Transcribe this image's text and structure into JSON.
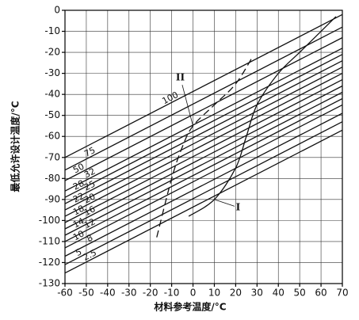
{
  "chart_data": {
    "type": "line",
    "xlabel": "材料参考温度/°C",
    "ylabel": "最低允许设计温度/°C",
    "xlim": [
      -60,
      70
    ],
    "xticks": [
      -60,
      -50,
      -40,
      -30,
      -20,
      -10,
      0,
      10,
      20,
      30,
      40,
      50,
      60,
      70
    ],
    "ylim": [
      -130,
      0
    ],
    "yticks": [
      0,
      -10,
      -20,
      -30,
      -40,
      -50,
      -60,
      -70,
      -80,
      -90,
      -100,
      -110,
      -120,
      -130
    ],
    "grid": true,
    "color": "#111",
    "series": [
      {
        "name": "100",
        "x": [
          -60,
          70
        ],
        "values": [
          -70,
          -2
        ]
      },
      {
        "name": "75",
        "x": [
          -60,
          70
        ],
        "values": [
          -76,
          -8
        ]
      },
      {
        "name": "50",
        "x": [
          -60,
          70
        ],
        "values": [
          -81,
          -13
        ]
      },
      {
        "name": "32",
        "x": [
          -60,
          70
        ],
        "values": [
          -86,
          -18
        ]
      },
      {
        "name": "28",
        "x": [
          -60,
          70
        ],
        "values": [
          -89,
          -21
        ]
      },
      {
        "name": "25",
        "x": [
          -60,
          70
        ],
        "values": [
          -92,
          -24
        ]
      },
      {
        "name": "22",
        "x": [
          -60,
          70
        ],
        "values": [
          -95,
          -27
        ]
      },
      {
        "name": "20",
        "x": [
          -60,
          70
        ],
        "values": [
          -98,
          -30
        ]
      },
      {
        "name": "18",
        "x": [
          -60,
          70
        ],
        "values": [
          -101,
          -33
        ]
      },
      {
        "name": "16",
        "x": [
          -60,
          70
        ],
        "values": [
          -104,
          -36
        ]
      },
      {
        "name": "14",
        "x": [
          -60,
          70
        ],
        "values": [
          -107,
          -39
        ]
      },
      {
        "name": "12",
        "x": [
          -60,
          70
        ],
        "values": [
          -110,
          -42
        ]
      },
      {
        "name": "10",
        "x": [
          -60,
          70
        ],
        "values": [
          -113,
          -45
        ]
      },
      {
        "name": "8",
        "x": [
          -60,
          70
        ],
        "values": [
          -117,
          -49
        ]
      },
      {
        "name": "5",
        "x": [
          -60,
          70
        ],
        "values": [
          -121,
          -53
        ]
      },
      {
        "name": "2.5",
        "x": [
          -60,
          70
        ],
        "values": [
          -125,
          -57
        ]
      },
      {
        "name": "I",
        "curve": true,
        "x": [
          -2,
          10,
          20,
          25,
          30,
          40,
          50,
          60,
          67
        ],
        "values": [
          -98,
          -90,
          -75,
          -60,
          -45,
          -30,
          -20,
          -10,
          -3
        ]
      },
      {
        "name": "II",
        "curve": true,
        "dashed": true,
        "x": [
          -17,
          -10,
          -5,
          0,
          10,
          20,
          28
        ],
        "values": [
          -108,
          -80,
          -65,
          -55,
          -45,
          -35,
          -22
        ]
      }
    ]
  }
}
